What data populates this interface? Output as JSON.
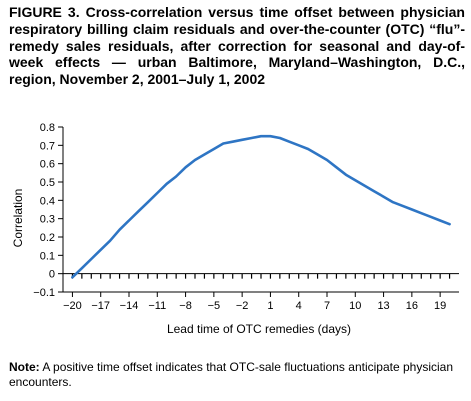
{
  "figure_label": "FIGURE 3.",
  "title": "Cross-correlation versus time offset between physician respiratory billing claim residuals and over-the-counter (OTC) “flu”-remedy sales residuals, after correction for seasonal and day-of-week effects — urban Baltimore, Maryland–Washington, D.C., region, November 2, 2001–July 1, 2002",
  "note": {
    "label": "Note:",
    "text": " A positive time offset indicates that OTC-sale fluctuations anticipate physician encounters."
  },
  "colors": {
    "line": "#2e75c4",
    "axis": "#000000"
  },
  "chart_data": {
    "type": "line",
    "title": "",
    "xlabel": "Lead time of OTC remedies (days)",
    "ylabel": "Correlation",
    "xlim": [
      -21,
      21
    ],
    "ylim": [
      -0.1,
      0.8
    ],
    "xticks": [
      -20,
      -17,
      -14,
      -11,
      -8,
      -5,
      -2,
      1,
      4,
      7,
      10,
      13,
      16,
      19
    ],
    "xtick_labels": [
      "−20",
      "−17",
      "−14",
      "−11",
      "−8",
      "−5",
      "−2",
      "1",
      "4",
      "7",
      "10",
      "13",
      "16",
      "19"
    ],
    "yticks": [
      -0.1,
      0,
      0.1,
      0.2,
      0.3,
      0.4,
      0.5,
      0.6,
      0.7,
      0.8
    ],
    "ytick_labels": [
      "−0.1",
      "0",
      "0.1",
      "0.2",
      "0.3",
      "0.4",
      "0.5",
      "0.6",
      "0.7",
      "0.8"
    ],
    "grid": false,
    "series": [
      {
        "x": [
          -20,
          -19,
          -18,
          -17,
          -16,
          -15,
          -14,
          -13,
          -12,
          -11,
          -10,
          -9,
          -8,
          -7,
          -6,
          -5,
          -4,
          -3,
          -2,
          -1,
          0,
          1,
          2,
          3,
          4,
          5,
          6,
          7,
          8,
          9,
          10,
          11,
          12,
          13,
          14,
          15,
          16,
          17,
          18,
          19,
          20
        ],
        "y": [
          -0.02,
          0.03,
          0.08,
          0.13,
          0.18,
          0.24,
          0.29,
          0.34,
          0.39,
          0.44,
          0.49,
          0.53,
          0.58,
          0.62,
          0.65,
          0.68,
          0.71,
          0.72,
          0.73,
          0.74,
          0.75,
          0.75,
          0.74,
          0.72,
          0.7,
          0.68,
          0.65,
          0.62,
          0.58,
          0.54,
          0.51,
          0.48,
          0.45,
          0.42,
          0.39,
          0.37,
          0.35,
          0.33,
          0.31,
          0.29,
          0.27
        ]
      }
    ]
  }
}
